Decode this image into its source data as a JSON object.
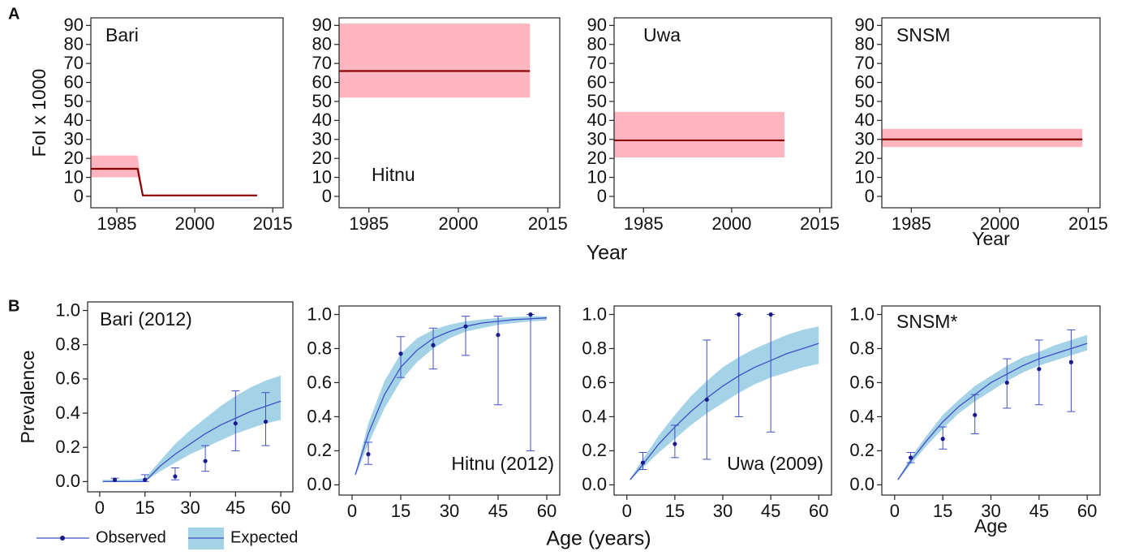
{
  "panel_letters": [
    "A",
    "B"
  ],
  "shared_labels": {
    "year": "Year",
    "age": "Age (years)"
  },
  "legend": [
    "Observed",
    "Expected"
  ],
  "chart_data": [
    {
      "type": "line",
      "label": "Bari",
      "ylabel": "FoI x 1000",
      "x": [
        1980,
        1989,
        1990,
        2012
      ],
      "values": [
        14.5,
        14.5,
        0.5,
        0.5
      ],
      "lower": [
        10,
        10,
        0,
        0
      ],
      "upper": [
        21.5,
        21.5,
        1,
        1
      ],
      "color": "#8b0000",
      "band_color": "#ffb6c1",
      "xlim": [
        1980,
        2017
      ],
      "ylim": [
        -6,
        94
      ],
      "xticks": [
        1985,
        2000,
        2015
      ],
      "yticks": [
        0,
        10,
        20,
        30,
        40,
        50,
        60,
        70,
        80,
        90
      ]
    },
    {
      "type": "line",
      "label": "Hitnu",
      "x": [
        1980,
        2012
      ],
      "values": [
        66,
        66
      ],
      "lower": [
        52,
        52
      ],
      "upper": [
        91,
        91
      ],
      "color": "#8b0000",
      "band_color": "#ffb6c1",
      "xlim": [
        1980,
        2017
      ],
      "ylim": [
        -6,
        94
      ],
      "xticks": [
        1985,
        2000,
        2015
      ],
      "yticks": [
        0,
        10,
        20,
        30,
        40,
        50,
        60,
        70,
        80,
        90
      ]
    },
    {
      "type": "line",
      "label": "Uwa",
      "x": [
        1980,
        2009
      ],
      "values": [
        29.5,
        29.5
      ],
      "lower": [
        20.5,
        20.5
      ],
      "upper": [
        44.5,
        44.5
      ],
      "color": "#8b0000",
      "band_color": "#ffb6c1",
      "xlim": [
        1980,
        2017
      ],
      "ylim": [
        -6,
        94
      ],
      "xticks": [
        1985,
        2000,
        2015
      ],
      "yticks": [
        0,
        10,
        20,
        30,
        40,
        50,
        60,
        70,
        80,
        90
      ]
    },
    {
      "type": "line",
      "label": "SNSM",
      "xlabel": "Year",
      "x": [
        1980,
        2014
      ],
      "values": [
        30,
        30
      ],
      "lower": [
        26,
        26
      ],
      "upper": [
        35.5,
        35.5
      ],
      "color": "#8b0000",
      "band_color": "#ffb6c1",
      "xlim": [
        1980,
        2017
      ],
      "ylim": [
        -6,
        94
      ],
      "xticks": [
        1985,
        2000,
        2015
      ],
      "yticks": [
        0,
        10,
        20,
        30,
        40,
        50,
        60,
        70,
        80,
        90
      ]
    },
    {
      "type": "line",
      "label": "Bari (2012)",
      "ylabel": "Prevalence",
      "x": [
        1,
        5,
        10,
        15,
        20,
        25,
        30,
        35,
        40,
        45,
        50,
        55,
        60
      ],
      "values": [
        0,
        0,
        0,
        0,
        0.09,
        0.16,
        0.22,
        0.28,
        0.33,
        0.37,
        0.41,
        0.44,
        0.47
      ],
      "lower": [
        0,
        0,
        0,
        0,
        0.06,
        0.11,
        0.16,
        0.2,
        0.24,
        0.28,
        0.31,
        0.34,
        0.36
      ],
      "upper": [
        0.01,
        0.01,
        0.01,
        0.02,
        0.12,
        0.22,
        0.3,
        0.37,
        0.44,
        0.5,
        0.55,
        0.59,
        0.62
      ],
      "observed": {
        "x": [
          5,
          15,
          25,
          35,
          45,
          55
        ],
        "values": [
          0.01,
          0.01,
          0.03,
          0.12,
          0.34,
          0.35
        ],
        "lower": [
          0,
          0,
          0.01,
          0.06,
          0.18,
          0.21
        ],
        "upper": [
          0.02,
          0.04,
          0.08,
          0.21,
          0.53,
          0.52
        ]
      },
      "color": "#3f4fc7",
      "band_color": "#a4d2e6",
      "point_color": "#1a1a8c",
      "xlim": [
        -4,
        64
      ],
      "ylim": [
        -0.06,
        1.05
      ],
      "xticks": [
        0,
        15,
        30,
        45,
        60
      ],
      "yticks": [
        {
          "value": 0,
          "label": "0.0"
        },
        {
          "value": 0.2,
          "label": "0.2"
        },
        {
          "value": 0.4,
          "label": "0.4"
        },
        {
          "value": 0.6,
          "label": "0.6"
        },
        {
          "value": 0.8,
          "label": "0.8"
        },
        {
          "value": 1,
          "label": "1.0"
        }
      ]
    },
    {
      "type": "line",
      "label": "Hitnu (2012)",
      "x": [
        1,
        5,
        10,
        15,
        20,
        25,
        30,
        35,
        40,
        45,
        50,
        55,
        60
      ],
      "values": [
        0.06,
        0.3,
        0.53,
        0.69,
        0.79,
        0.86,
        0.9,
        0.93,
        0.95,
        0.96,
        0.97,
        0.975,
        0.98
      ],
      "lower": [
        0.05,
        0.24,
        0.45,
        0.61,
        0.72,
        0.8,
        0.86,
        0.9,
        0.92,
        0.94,
        0.95,
        0.96,
        0.965
      ],
      "upper": [
        0.07,
        0.36,
        0.61,
        0.77,
        0.86,
        0.91,
        0.94,
        0.96,
        0.97,
        0.98,
        0.985,
        0.99,
        0.99
      ],
      "observed": {
        "x": [
          5,
          15,
          25,
          35,
          45,
          55
        ],
        "values": [
          0.18,
          0.77,
          0.82,
          0.93,
          0.88,
          1
        ],
        "lower": [
          0.12,
          0.63,
          0.68,
          0.76,
          0.47,
          0.2
        ],
        "upper": [
          0.25,
          0.87,
          0.92,
          0.99,
          0.99,
          1
        ]
      },
      "color": "#3f4fc7",
      "band_color": "#a4d2e6",
      "point_color": "#1a1a8c",
      "xlim": [
        -4,
        64
      ],
      "ylim": [
        -0.06,
        1.05
      ],
      "xticks": [
        0,
        15,
        30,
        45,
        60
      ],
      "yticks": [
        {
          "value": 0,
          "label": "0.0"
        },
        {
          "value": 0.2,
          "label": "0.2"
        },
        {
          "value": 0.4,
          "label": "0.4"
        },
        {
          "value": 0.6,
          "label": "0.6"
        },
        {
          "value": 0.8,
          "label": "0.8"
        },
        {
          "value": 1,
          "label": "1.0"
        }
      ]
    },
    {
      "type": "line",
      "label": "Uwa (2009)",
      "x": [
        1,
        5,
        10,
        15,
        20,
        25,
        30,
        35,
        40,
        45,
        50,
        55,
        60
      ],
      "values": [
        0.03,
        0.12,
        0.24,
        0.34,
        0.43,
        0.51,
        0.58,
        0.64,
        0.69,
        0.73,
        0.77,
        0.8,
        0.83
      ],
      "lower": [
        0.025,
        0.1,
        0.19,
        0.27,
        0.35,
        0.42,
        0.48,
        0.54,
        0.59,
        0.63,
        0.66,
        0.69,
        0.71
      ],
      "upper": [
        0.035,
        0.15,
        0.29,
        0.41,
        0.52,
        0.61,
        0.69,
        0.75,
        0.8,
        0.84,
        0.88,
        0.91,
        0.93
      ],
      "observed": {
        "x": [
          5,
          15,
          25,
          35,
          45
        ],
        "values": [
          0.13,
          0.24,
          0.5,
          1,
          1
        ],
        "lower": [
          0.09,
          0.16,
          0.15,
          0.4,
          0.31
        ],
        "upper": [
          0.19,
          0.35,
          0.85,
          1,
          1
        ]
      },
      "color": "#3f4fc7",
      "band_color": "#a4d2e6",
      "point_color": "#1a1a8c",
      "xlim": [
        -4,
        64
      ],
      "ylim": [
        -0.06,
        1.05
      ],
      "xticks": [
        0,
        15,
        30,
        45,
        60
      ],
      "yticks": [
        {
          "value": 0,
          "label": "0.0"
        },
        {
          "value": 0.2,
          "label": "0.2"
        },
        {
          "value": 0.4,
          "label": "0.4"
        },
        {
          "value": 0.6,
          "label": "0.6"
        },
        {
          "value": 0.8,
          "label": "0.8"
        },
        {
          "value": 1,
          "label": "1.0"
        }
      ]
    },
    {
      "type": "line",
      "label": "SNSM*",
      "xlabel": "Age",
      "x": [
        1,
        5,
        10,
        15,
        20,
        25,
        30,
        35,
        40,
        45,
        50,
        55,
        60
      ],
      "values": [
        0.03,
        0.14,
        0.26,
        0.37,
        0.46,
        0.53,
        0.6,
        0.65,
        0.7,
        0.74,
        0.77,
        0.8,
        0.83
      ],
      "lower": [
        0.025,
        0.12,
        0.23,
        0.33,
        0.42,
        0.49,
        0.55,
        0.61,
        0.66,
        0.7,
        0.73,
        0.76,
        0.79
      ],
      "upper": [
        0.035,
        0.16,
        0.29,
        0.41,
        0.5,
        0.58,
        0.64,
        0.7,
        0.75,
        0.78,
        0.82,
        0.85,
        0.88
      ],
      "observed": {
        "x": [
          5,
          15,
          25,
          35,
          45,
          55
        ],
        "values": [
          0.16,
          0.27,
          0.41,
          0.6,
          0.68,
          0.72
        ],
        "lower": [
          0.13,
          0.21,
          0.3,
          0.45,
          0.47,
          0.43
        ],
        "upper": [
          0.19,
          0.34,
          0.53,
          0.74,
          0.85,
          0.91
        ]
      },
      "color": "#3f4fc7",
      "band_color": "#a4d2e6",
      "point_color": "#1a1a8c",
      "xlim": [
        -4,
        64
      ],
      "ylim": [
        -0.06,
        1.05
      ],
      "xticks": [
        0,
        15,
        30,
        45,
        60
      ],
      "yticks": [
        {
          "value": 0,
          "label": "0.0"
        },
        {
          "value": 0.2,
          "label": "0.2"
        },
        {
          "value": 0.4,
          "label": "0.4"
        },
        {
          "value": 0.6,
          "label": "0.6"
        },
        {
          "value": 0.8,
          "label": "0.8"
        },
        {
          "value": 1,
          "label": "1.0"
        }
      ]
    }
  ]
}
